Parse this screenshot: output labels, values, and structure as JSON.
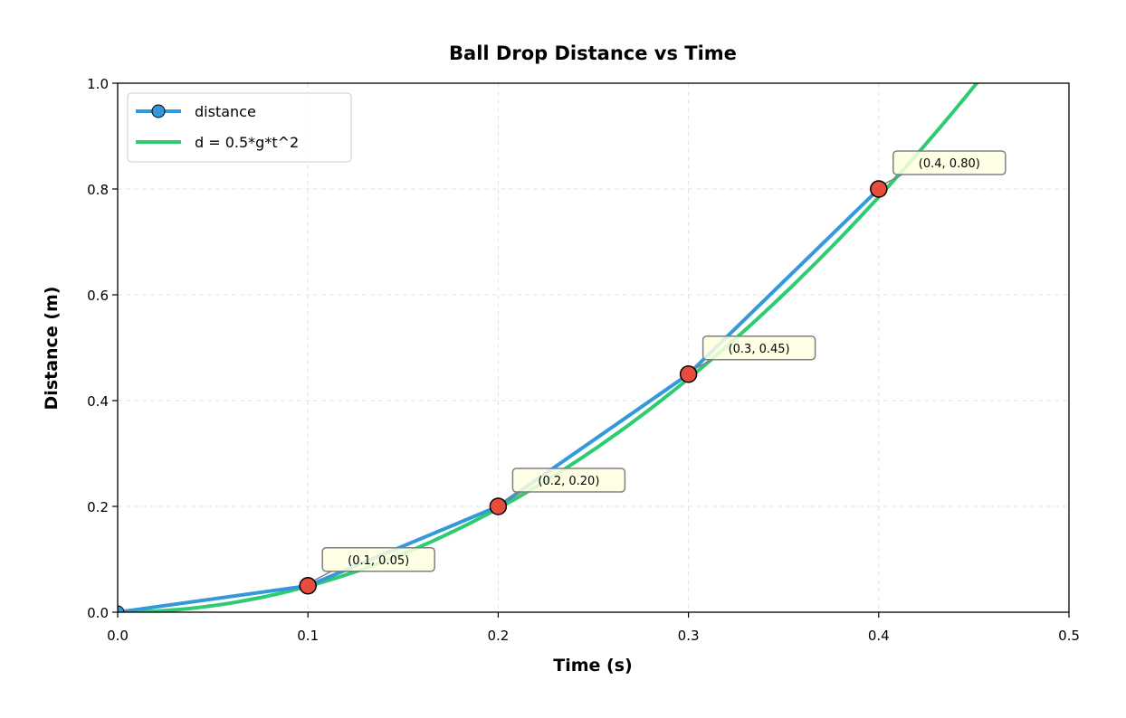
{
  "chart_data": {
    "type": "line",
    "title": "Ball Drop Distance vs Time",
    "xlabel": "Time (s)",
    "ylabel": "Distance (m)",
    "xlim": [
      0.0,
      0.5
    ],
    "ylim": [
      0.0,
      1.0
    ],
    "x_ticks": [
      "0.0",
      "0.1",
      "0.2",
      "0.3",
      "0.4",
      "0.5"
    ],
    "y_ticks": [
      "0.0",
      "0.2",
      "0.4",
      "0.6",
      "0.8",
      "1.0"
    ],
    "grid": true,
    "legend_position": "top-left",
    "series": [
      {
        "name": "distance",
        "style": "line-with-markers",
        "color": "#3498db",
        "x": [
          0.0,
          0.1,
          0.2,
          0.3,
          0.4
        ],
        "y": [
          0.0,
          0.05,
          0.2,
          0.45,
          0.8
        ]
      },
      {
        "name": "d = 0.5*g*t^2",
        "style": "line",
        "color": "#2ecc71",
        "g": 9.81,
        "x_range": [
          0.0,
          0.5
        ]
      }
    ],
    "highlight_color": "#e74c3c",
    "annotations": [
      {
        "x": 0.1,
        "y": 0.05,
        "label": "(0.1, 0.05)"
      },
      {
        "x": 0.2,
        "y": 0.2,
        "label": "(0.2, 0.20)"
      },
      {
        "x": 0.3,
        "y": 0.45,
        "label": "(0.3, 0.45)"
      },
      {
        "x": 0.4,
        "y": 0.8,
        "label": "(0.4, 0.80)"
      }
    ]
  }
}
